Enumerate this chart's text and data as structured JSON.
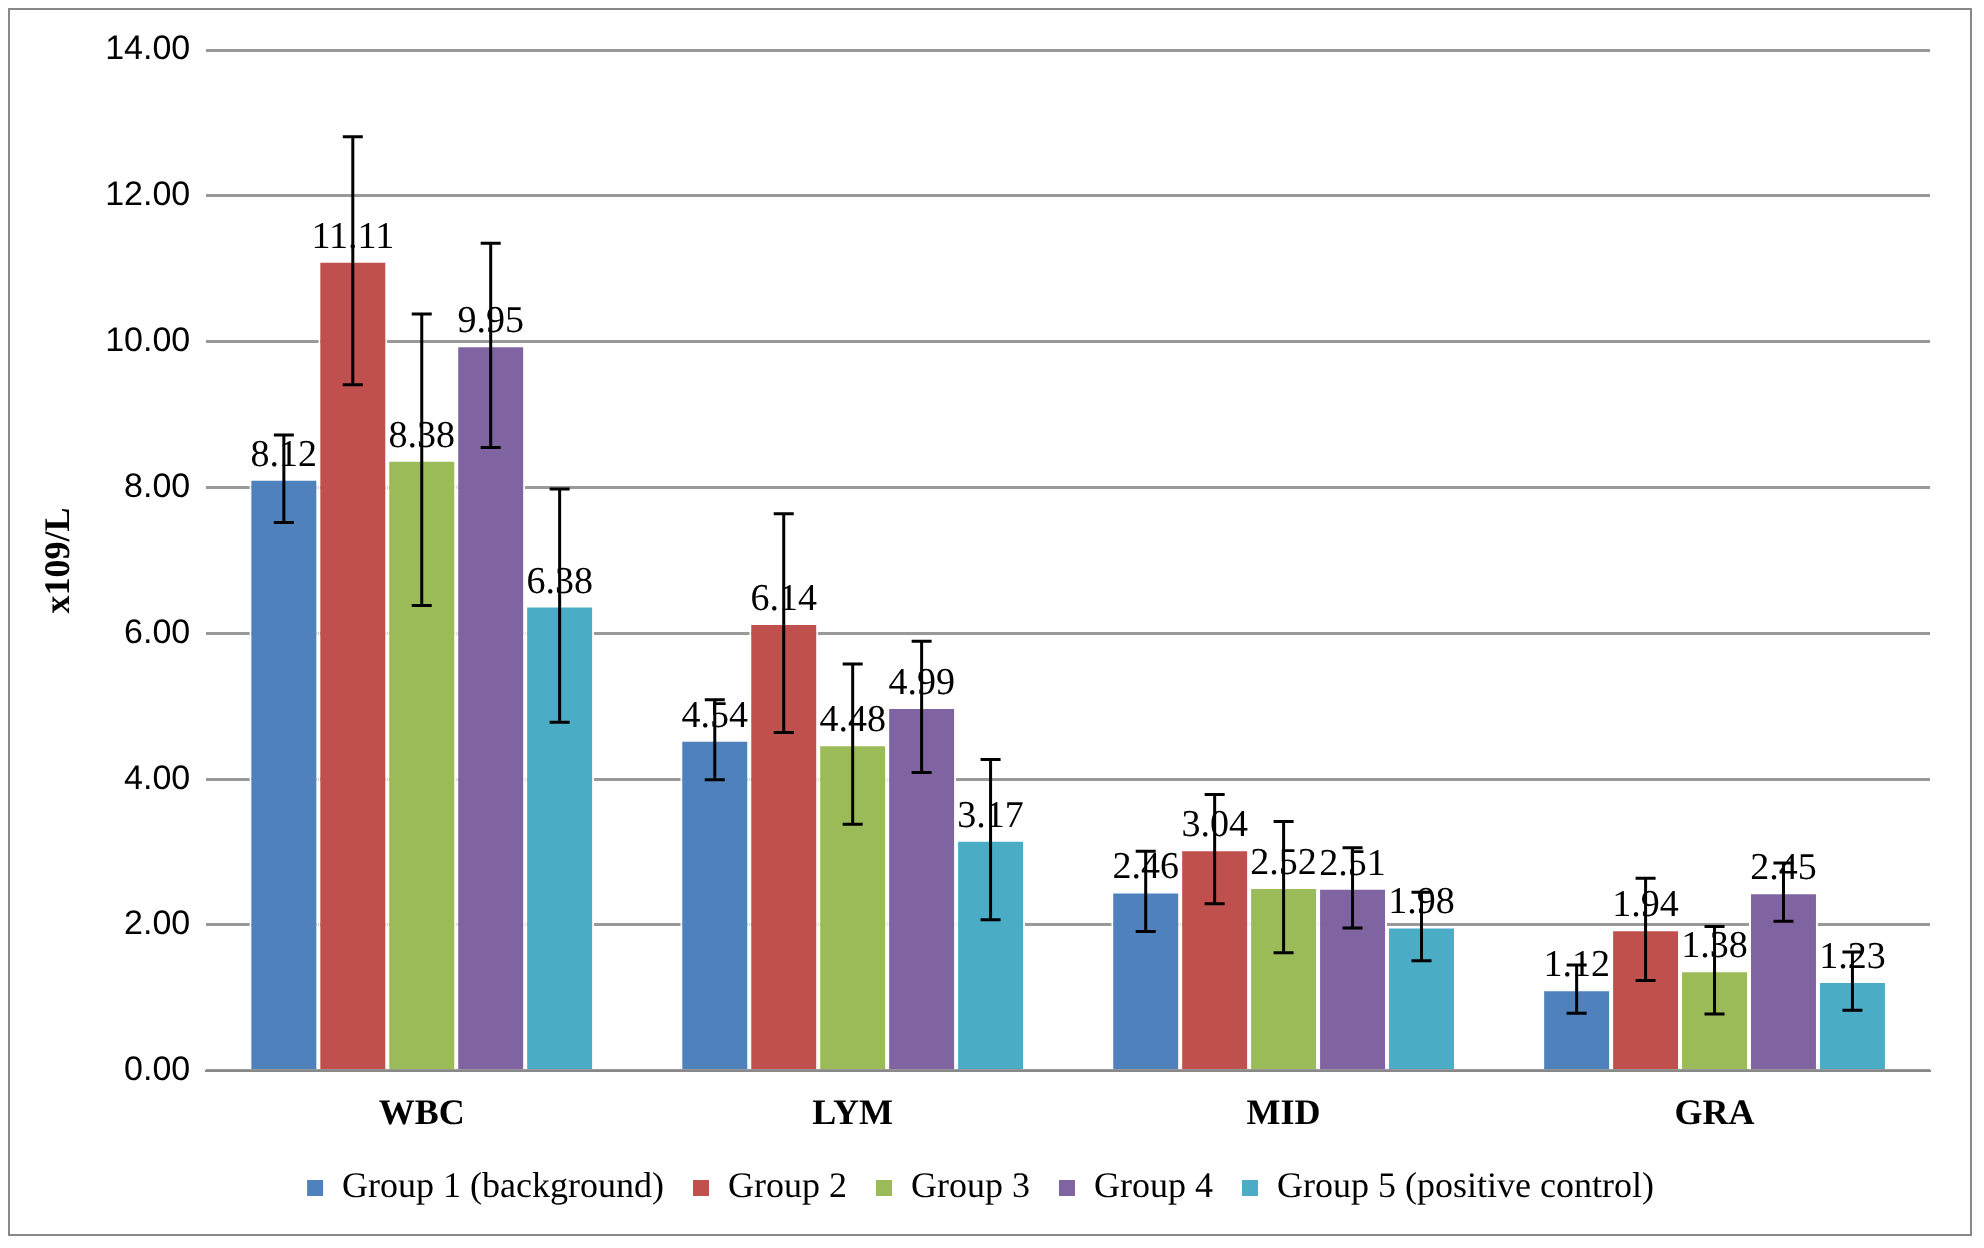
{
  "chart_data": {
    "type": "bar",
    "ylabel": "x109/L",
    "categories": [
      "WBC",
      "LYM",
      "MID",
      "GRA"
    ],
    "series": [
      {
        "name": "Group 1 (background)",
        "color": "#4f81bd",
        "values": [
          8.12,
          4.54,
          2.46,
          1.12
        ],
        "errors": [
          0.6,
          0.55,
          0.55,
          0.33
        ]
      },
      {
        "name": "Group 2",
        "color": "#c0504d",
        "values": [
          11.11,
          6.14,
          3.04,
          1.94
        ],
        "errors": [
          1.7,
          1.5,
          0.75,
          0.7
        ]
      },
      {
        "name": "Group 3",
        "color": "#9bbb59",
        "values": [
          8.38,
          4.48,
          2.52,
          1.38
        ],
        "errors": [
          2.0,
          1.1,
          0.9,
          0.6
        ]
      },
      {
        "name": "Group 4",
        "color": "#8064a2",
        "values": [
          9.95,
          4.99,
          2.51,
          2.45
        ],
        "errors": [
          1.4,
          0.9,
          0.55,
          0.4
        ]
      },
      {
        "name": "Group 5 (positive control)",
        "color": "#4bacc6",
        "values": [
          6.38,
          3.17,
          1.98,
          1.23
        ],
        "errors": [
          1.6,
          1.1,
          0.47,
          0.4
        ]
      }
    ],
    "ylim": [
      0,
      14
    ],
    "yticks": [
      {
        "value": 0,
        "label": "0.00"
      },
      {
        "value": 2,
        "label": "2.00"
      },
      {
        "value": 4,
        "label": "4.00"
      },
      {
        "value": 6,
        "label": "6.00"
      },
      {
        "value": 8,
        "label": "8.00"
      },
      {
        "value": 10,
        "label": "10.00"
      },
      {
        "value": 12,
        "label": "12.00"
      },
      {
        "value": 14,
        "label": "14.00"
      }
    ],
    "grid": "y",
    "legend": "bottom",
    "data_labels": true
  }
}
